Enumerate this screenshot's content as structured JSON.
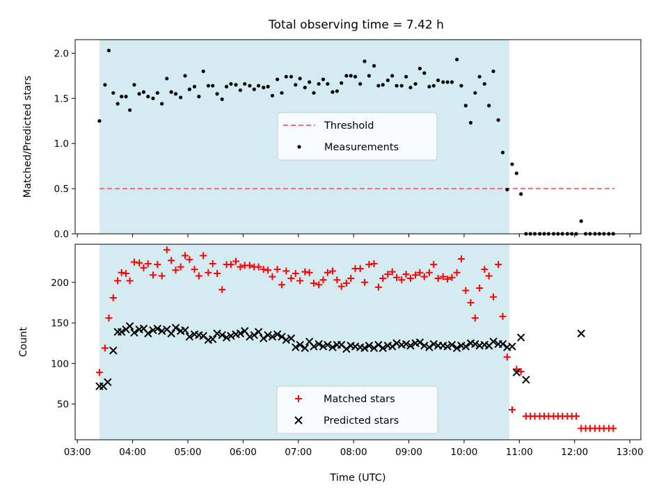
{
  "figure": {
    "title": "Total observing time = 7.42 h"
  },
  "colors": {
    "shade": "#add8e6",
    "threshold": "#ff6666",
    "measurement": "#000000",
    "matched": "#ff0000",
    "predicted": "#000000"
  },
  "chart_data": [
    {
      "type": "scatter",
      "panel": "top",
      "ylabel": "Matched/Predicted stars",
      "xlabel": "",
      "xlim": [
        2.96,
        13.2
      ],
      "ylim": [
        0.0,
        2.15
      ],
      "yticks": [
        0.0,
        0.5,
        1.0,
        1.5,
        2.0
      ],
      "ytick_labels": [
        "0.0",
        "0.5",
        "1.0",
        "1.5",
        "2.0"
      ],
      "xticks": [
        3,
        4,
        5,
        6,
        7,
        8,
        9,
        10,
        11,
        12,
        13
      ],
      "shaded_span": [
        3.4,
        10.82
      ],
      "threshold": {
        "name": "Threshold",
        "y": 0.5,
        "x_range": [
          3.4,
          12.72
        ]
      },
      "legend": {
        "position": "center",
        "entries": [
          "Threshold",
          "Measurements"
        ]
      },
      "series": [
        {
          "name": "Measurements",
          "marker": "dot",
          "x": [
            3.4,
            3.5,
            3.57,
            3.65,
            3.73,
            3.8,
            3.88,
            3.95,
            4.03,
            4.12,
            4.2,
            4.28,
            4.37,
            4.45,
            4.53,
            4.62,
            4.7,
            4.78,
            4.87,
            4.95,
            5.03,
            5.12,
            5.2,
            5.28,
            5.37,
            5.45,
            5.53,
            5.62,
            5.7,
            5.78,
            5.87,
            5.95,
            6.03,
            6.12,
            6.2,
            6.28,
            6.37,
            6.45,
            6.53,
            6.62,
            6.7,
            6.78,
            6.87,
            6.95,
            7.03,
            7.12,
            7.2,
            7.28,
            7.37,
            7.45,
            7.53,
            7.62,
            7.7,
            7.78,
            7.87,
            7.95,
            8.03,
            8.12,
            8.2,
            8.28,
            8.37,
            8.45,
            8.53,
            8.62,
            8.7,
            8.78,
            8.87,
            8.95,
            9.03,
            9.12,
            9.2,
            9.28,
            9.37,
            9.45,
            9.53,
            9.62,
            9.7,
            9.78,
            9.87,
            9.95,
            10.03,
            10.12,
            10.2,
            10.28,
            10.37,
            10.45,
            10.53,
            10.62,
            10.7,
            10.78,
            10.87,
            10.95,
            11.03,
            11.12,
            11.2,
            11.28,
            11.37,
            11.45,
            11.53,
            11.62,
            11.7,
            11.78,
            11.87,
            11.95,
            12.03,
            12.12,
            12.2,
            12.28,
            12.37,
            12.45,
            12.53,
            12.62,
            12.7
          ],
          "y": [
            1.25,
            1.65,
            2.03,
            1.56,
            1.44,
            1.52,
            1.52,
            1.37,
            1.65,
            1.55,
            1.57,
            1.52,
            1.5,
            1.56,
            1.44,
            1.72,
            1.57,
            1.55,
            1.51,
            1.75,
            1.6,
            1.63,
            1.52,
            1.8,
            1.64,
            1.64,
            1.55,
            1.49,
            1.63,
            1.66,
            1.65,
            1.59,
            1.66,
            1.64,
            1.6,
            1.64,
            1.62,
            1.63,
            1.53,
            1.71,
            1.56,
            1.74,
            1.74,
            1.65,
            1.72,
            1.62,
            1.68,
            1.56,
            1.66,
            1.71,
            1.66,
            1.57,
            1.58,
            1.67,
            1.75,
            1.75,
            1.74,
            1.66,
            1.91,
            1.75,
            1.86,
            1.64,
            1.65,
            1.7,
            1.75,
            1.64,
            1.64,
            1.74,
            1.62,
            1.66,
            1.83,
            1.78,
            1.63,
            1.64,
            1.7,
            1.68,
            1.68,
            1.68,
            1.93,
            1.64,
            1.42,
            1.23,
            1.56,
            1.74,
            1.66,
            1.42,
            1.8,
            1.26,
            0.9,
            0.49,
            0.77,
            0.67,
            0.44,
            0.0,
            0.0,
            0.0,
            0.0,
            0.0,
            0.0,
            0.0,
            0.0,
            0.0,
            0.0,
            0.0,
            0.0,
            0.14,
            0.0,
            0.0,
            0.0,
            0.0,
            0.0,
            0.0,
            0.0
          ]
        }
      ]
    },
    {
      "type": "scatter",
      "panel": "bottom",
      "ylabel": "Count",
      "xlabel": "Time (UTC)",
      "xlim": [
        2.96,
        13.2
      ],
      "ylim": [
        6,
        247
      ],
      "yticks": [
        50,
        100,
        150,
        200
      ],
      "ytick_labels": [
        "50",
        "100",
        "150",
        "200"
      ],
      "xticks": [
        3,
        4,
        5,
        6,
        7,
        8,
        9,
        10,
        11,
        12,
        13
      ],
      "xtick_labels": [
        "03:00",
        "04:00",
        "05:00",
        "06:00",
        "07:00",
        "08:00",
        "09:00",
        "10:00",
        "11:00",
        "12:00",
        "13:00"
      ],
      "shaded_span": [
        3.4,
        10.82
      ],
      "legend": {
        "position": "lower center",
        "entries": [
          "Matched stars",
          "Predicted stars"
        ]
      },
      "series": [
        {
          "name": "Matched stars",
          "marker": "plus",
          "x": [
            3.4,
            3.5,
            3.57,
            3.65,
            3.73,
            3.8,
            3.88,
            3.95,
            4.03,
            4.12,
            4.2,
            4.28,
            4.37,
            4.45,
            4.53,
            4.62,
            4.7,
            4.78,
            4.87,
            4.95,
            5.03,
            5.12,
            5.2,
            5.28,
            5.37,
            5.45,
            5.53,
            5.62,
            5.7,
            5.78,
            5.87,
            5.95,
            6.03,
            6.12,
            6.2,
            6.28,
            6.37,
            6.45,
            6.53,
            6.62,
            6.7,
            6.78,
            6.87,
            6.95,
            7.03,
            7.12,
            7.2,
            7.28,
            7.37,
            7.45,
            7.53,
            7.62,
            7.7,
            7.78,
            7.87,
            7.95,
            8.03,
            8.12,
            8.2,
            8.28,
            8.37,
            8.45,
            8.53,
            8.62,
            8.7,
            8.78,
            8.87,
            8.95,
            9.03,
            9.12,
            9.2,
            9.28,
            9.37,
            9.45,
            9.53,
            9.62,
            9.7,
            9.78,
            9.87,
            9.95,
            10.03,
            10.12,
            10.2,
            10.28,
            10.37,
            10.45,
            10.53,
            10.62,
            10.7,
            10.78,
            10.87,
            10.95,
            11.03,
            11.12,
            11.2,
            11.28,
            11.37,
            11.45,
            11.53,
            11.62,
            11.7,
            11.78,
            11.87,
            11.95,
            12.03,
            12.12,
            12.2,
            12.28,
            12.37,
            12.45,
            12.53,
            12.62,
            12.7
          ],
          "y": [
            89,
            119,
            156,
            181,
            202,
            212,
            211,
            202,
            225,
            224,
            218,
            223,
            209,
            222,
            208,
            240,
            227,
            215,
            219,
            233,
            228,
            216,
            208,
            233,
            212,
            223,
            211,
            191,
            222,
            222,
            226,
            219,
            221,
            221,
            219,
            219,
            216,
            215,
            207,
            216,
            197,
            214,
            205,
            211,
            202,
            213,
            212,
            199,
            197,
            203,
            212,
            214,
            203,
            195,
            199,
            205,
            217,
            217,
            200,
            222,
            223,
            194,
            205,
            210,
            213,
            206,
            203,
            210,
            205,
            209,
            212,
            207,
            212,
            222,
            205,
            207,
            204,
            206,
            212,
            229,
            190,
            175,
            156,
            193,
            216,
            208,
            182,
            222,
            158,
            108,
            43,
            93,
            90,
            35,
            35,
            35,
            35,
            35,
            35,
            35,
            35,
            35,
            35,
            35,
            35,
            20,
            20,
            20,
            20,
            20,
            20,
            20,
            20
          ]
        },
        {
          "name": "Predicted stars",
          "marker": "x",
          "x": [
            3.4,
            3.47,
            3.55,
            3.65,
            3.73,
            3.8,
            3.88,
            3.95,
            4.03,
            4.12,
            4.2,
            4.28,
            4.37,
            4.45,
            4.53,
            4.62,
            4.7,
            4.78,
            4.87,
            4.95,
            5.03,
            5.12,
            5.2,
            5.28,
            5.37,
            5.45,
            5.53,
            5.62,
            5.7,
            5.78,
            5.87,
            5.95,
            6.03,
            6.12,
            6.2,
            6.28,
            6.37,
            6.45,
            6.53,
            6.62,
            6.7,
            6.78,
            6.87,
            6.95,
            7.03,
            7.12,
            7.2,
            7.28,
            7.37,
            7.45,
            7.53,
            7.62,
            7.7,
            7.78,
            7.87,
            7.95,
            8.03,
            8.12,
            8.2,
            8.28,
            8.37,
            8.45,
            8.53,
            8.62,
            8.7,
            8.78,
            8.87,
            8.95,
            9.03,
            9.12,
            9.2,
            9.28,
            9.37,
            9.45,
            9.53,
            9.62,
            9.7,
            9.78,
            9.87,
            9.95,
            10.03,
            10.12,
            10.2,
            10.28,
            10.37,
            10.45,
            10.53,
            10.62,
            10.7,
            10.78,
            10.87,
            10.95,
            11.03,
            11.12,
            12.12
          ],
          "y": [
            72,
            72,
            77,
            116,
            139,
            139,
            142,
            146,
            138,
            142,
            143,
            137,
            141,
            143,
            140,
            142,
            137,
            144,
            140,
            141,
            133,
            136,
            135,
            134,
            129,
            130,
            137,
            135,
            132,
            134,
            136,
            137,
            140,
            133,
            135,
            139,
            131,
            135,
            133,
            136,
            133,
            129,
            131,
            120,
            123,
            119,
            127,
            121,
            124,
            121,
            123,
            120,
            123,
            123,
            118,
            122,
            121,
            120,
            119,
            122,
            119,
            123,
            119,
            122,
            121,
            125,
            123,
            124,
            122,
            125,
            126,
            122,
            120,
            124,
            122,
            122,
            121,
            123,
            119,
            122,
            121,
            125,
            124,
            122,
            123,
            122,
            127,
            124,
            124,
            120,
            121,
            89,
            132,
            80,
            137
          ]
        }
      ]
    }
  ]
}
